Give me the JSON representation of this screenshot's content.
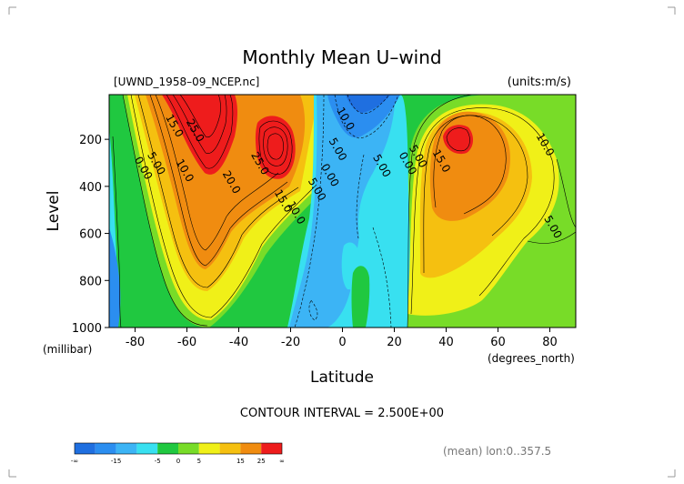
{
  "chart_data": {
    "type": "contour",
    "title": "Monthly Mean U–wind",
    "file_label": "[UWND_1958–09_NCEP.nc]",
    "units_label": "(units:m/s)",
    "xlabel": "Latitude",
    "x_units": "(degrees_north)",
    "ylabel": "Level",
    "y_units": "(millibar)",
    "xlim": [
      -90,
      90
    ],
    "ylim": [
      1000,
      10
    ],
    "x_ticks": [
      -80,
      -60,
      -40,
      -20,
      0,
      20,
      40,
      60,
      80
    ],
    "y_ticks": [
      200,
      400,
      600,
      800,
      1000
    ],
    "contour_interval_text": "CONTOUR INTERVAL = 2.500E+00",
    "footer_text": "(mean) lon:0..357.5",
    "contour_labels": [
      {
        "text": "15.0",
        "lat": -66,
        "lev": 150
      },
      {
        "text": "25.0",
        "lat": -58,
        "lev": 170
      },
      {
        "text": "0.00",
        "lat": -78,
        "lev": 330
      },
      {
        "text": "5.00",
        "lat": -73,
        "lev": 310
      },
      {
        "text": "10.0",
        "lat": -62,
        "lev": 340
      },
      {
        "text": "20.0",
        "lat": -44,
        "lev": 390
      },
      {
        "text": "25.0",
        "lat": -33,
        "lev": 310
      },
      {
        "text": "15.0",
        "lat": -24,
        "lev": 470
      },
      {
        "text": "10.0",
        "lat": -19,
        "lev": 520
      },
      {
        "text": "5.00",
        "lat": -11,
        "lev": 420
      },
      {
        "text": "0.00",
        "lat": -6,
        "lev": 360
      },
      {
        "text": "5.00",
        "lat": -3,
        "lev": 250
      },
      {
        "text": "10.0",
        "lat": 0,
        "lev": 120
      },
      {
        "text": "5.00",
        "lat": 14,
        "lev": 320
      },
      {
        "text": "0.00",
        "lat": 24,
        "lev": 310
      },
      {
        "text": "5.00",
        "lat": 28,
        "lev": 280
      },
      {
        "text": "15.0",
        "lat": 37,
        "lev": 300
      },
      {
        "text": "10.0",
        "lat": 77,
        "lev": 230
      },
      {
        "text": "5.00",
        "lat": 80,
        "lev": 580
      }
    ],
    "colorbar": {
      "colors": [
        "#1f6fe0",
        "#2b8ef0",
        "#3cb4f5",
        "#38e0f0",
        "#20c840",
        "#78dc28",
        "#f0f018",
        "#f5c010",
        "#f08c10",
        "#ee1c1c"
      ],
      "tick_labels": [
        "-∞",
        "-15",
        "-5",
        "0",
        "5",
        "15",
        "25",
        "∞"
      ]
    }
  }
}
